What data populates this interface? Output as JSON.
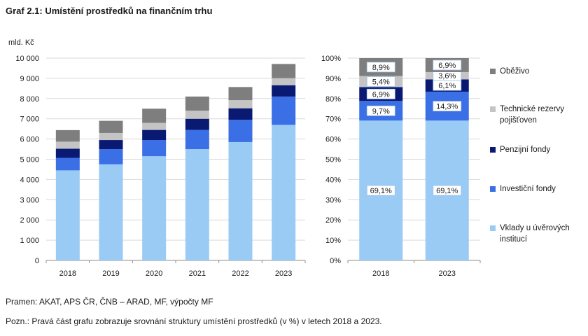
{
  "title": "Graf 2.1: Umístění prostředků na finančním trhu",
  "footer": {
    "source": "Pramen: AKAT, APS ČR, ČNB – ARAD, MF, výpočty MF",
    "note": "Pozn.: Pravá část grafu zobrazuje srovnání struktury umístění prostředků (v %) v letech 2018 a 2023."
  },
  "colors": {
    "vklady": "#9acbf5",
    "investicni": "#3a6fe6",
    "penzijni": "#0a1a73",
    "technicke": "#c4c4c4",
    "obezivo": "#7e7e7e"
  },
  "chart_data": [
    {
      "type": "bar",
      "stacked": true,
      "ylabel": "mld. Kč",
      "ylim": [
        0,
        10000
      ],
      "yticks": [
        "0",
        "1 000",
        "2 000",
        "3 000",
        "4 000",
        "5 000",
        "6 000",
        "7 000",
        "8 000",
        "9 000",
        "10 000"
      ],
      "categories": [
        "2018",
        "2019",
        "2020",
        "2021",
        "2022",
        "2023"
      ],
      "series": [
        {
          "name": "Vklady u úvěrových institucí",
          "color_key": "vklady",
          "values": [
            4450,
            4750,
            5150,
            5500,
            5850,
            6700
          ]
        },
        {
          "name": "Investiční fondy",
          "color_key": "investicni",
          "values": [
            620,
            750,
            800,
            950,
            1100,
            1400
          ]
        },
        {
          "name": "Penzijní fondy",
          "color_key": "penzijni",
          "values": [
            450,
            450,
            500,
            550,
            570,
            560
          ]
        },
        {
          "name": "Technické rezervy pojišťoven",
          "color_key": "technicke",
          "values": [
            350,
            350,
            350,
            400,
            400,
            350
          ]
        },
        {
          "name": "Oběživo",
          "color_key": "obezivo",
          "values": [
            570,
            600,
            700,
            700,
            650,
            700
          ]
        }
      ],
      "grid": true
    },
    {
      "type": "bar",
      "stacked": true,
      "percent": true,
      "ylim": [
        0,
        100
      ],
      "yticks": [
        "0%",
        "10%",
        "20%",
        "30%",
        "40%",
        "50%",
        "60%",
        "70%",
        "80%",
        "90%",
        "100%"
      ],
      "categories": [
        "2018",
        "2023"
      ],
      "series": [
        {
          "name": "Vklady u úvěrových institucí",
          "color_key": "vklady",
          "values": [
            69.1,
            69.1
          ],
          "labels": [
            "69,1%",
            "69,1%"
          ]
        },
        {
          "name": "Investiční fondy",
          "color_key": "investicni",
          "values": [
            9.7,
            14.3
          ],
          "labels": [
            "9,7%",
            "14,3%"
          ]
        },
        {
          "name": "Penzijní fondy",
          "color_key": "penzijni",
          "values": [
            6.9,
            6.1
          ],
          "labels": [
            "6,9%",
            "6,1%"
          ]
        },
        {
          "name": "Technické rezervy pojišťoven",
          "color_key": "technicke",
          "values": [
            5.4,
            3.6
          ],
          "labels": [
            "5,4%",
            "3,6%"
          ]
        },
        {
          "name": "Oběživo",
          "color_key": "obezivo",
          "values": [
            8.9,
            6.9
          ],
          "labels": [
            "8,9%",
            "6,9%"
          ]
        }
      ],
      "grid": true
    }
  ],
  "legend": {
    "placement": "right",
    "items": [
      {
        "label": "Oběživo",
        "color_key": "obezivo"
      },
      {
        "label": "Technické rezervy pojišťoven",
        "color_key": "technicke"
      },
      {
        "label": "Penzijní fondy",
        "color_key": "penzijni"
      },
      {
        "label": "Investiční fondy",
        "color_key": "investicni"
      },
      {
        "label": "Vklady u úvěrových institucí",
        "color_key": "vklady"
      }
    ]
  }
}
